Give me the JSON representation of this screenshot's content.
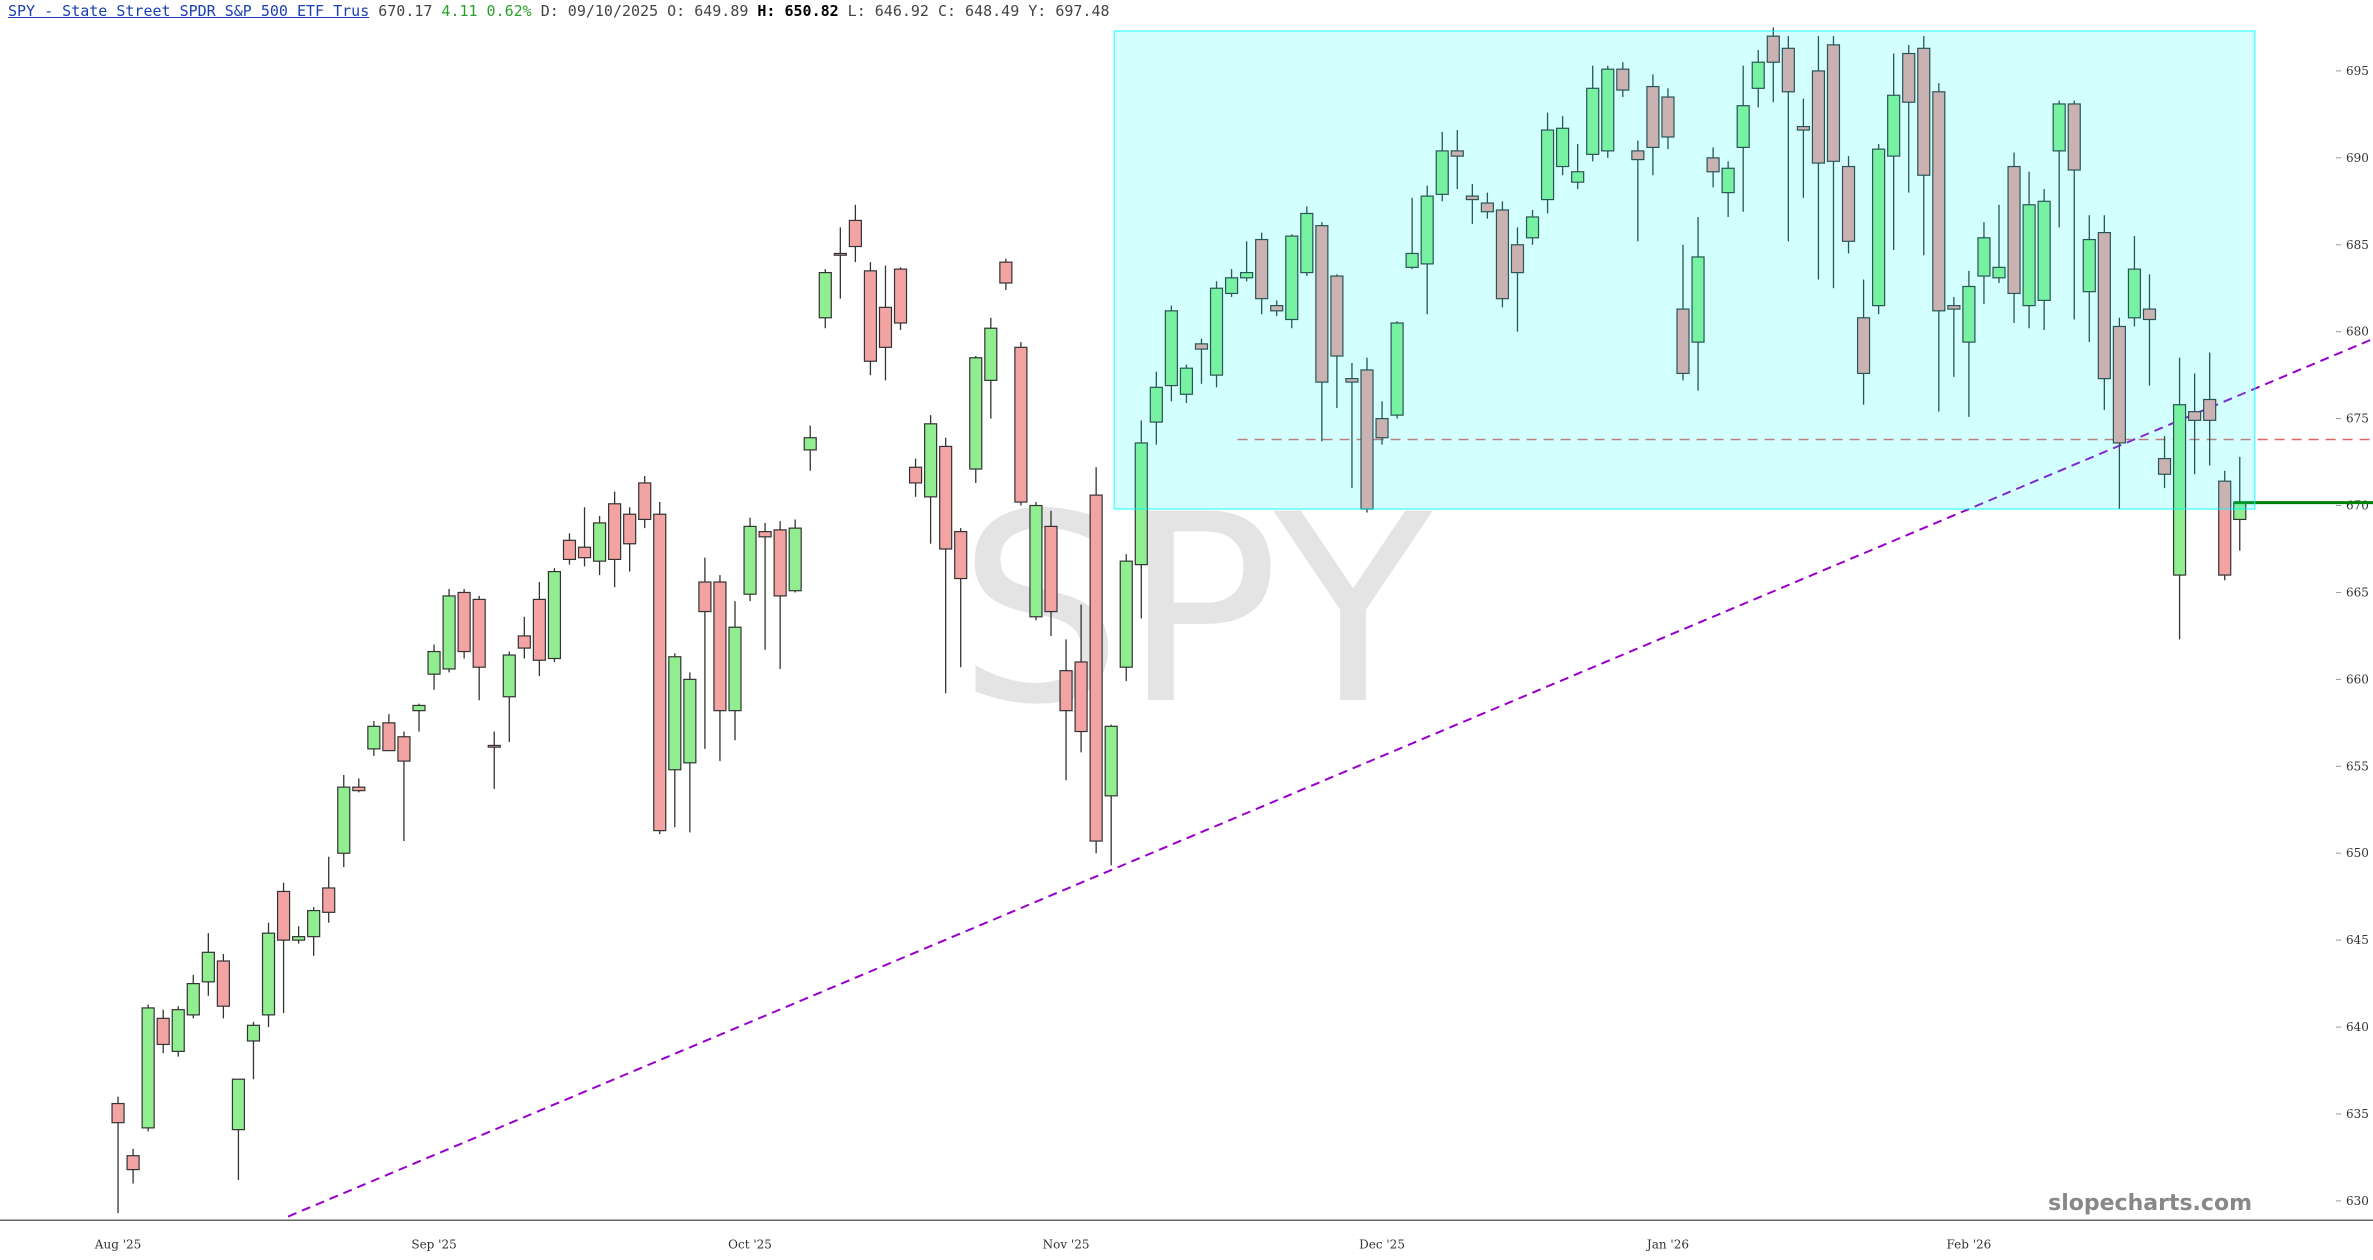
{
  "header": {
    "symbol": "SPY - State Street SPDR S&P 500 ETF Trus",
    "last": "670.17",
    "change": "4.11",
    "change_pct": "0.62%",
    "date": "D: 09/10/2025",
    "open": "O: 649.89",
    "high": "H: 650.82",
    "low": "L: 646.92",
    "close": "C: 648.49",
    "y": "Y: 697.48"
  },
  "chart_data": {
    "type": "candlestick",
    "watermark": "SPY",
    "brand": "slopecharts.com",
    "up_color": "#90ee90",
    "down_color": "#f4a3a3",
    "categories": [
      "Aug '25",
      null,
      null,
      null,
      null,
      null,
      null,
      null,
      null,
      null,
      null,
      null,
      null,
      null,
      null,
      null,
      null,
      null,
      null,
      null,
      null,
      "Sep '25",
      null,
      null,
      null,
      null,
      null,
      null,
      null,
      null,
      null,
      null,
      null,
      null,
      null,
      null,
      null,
      null,
      null,
      null,
      null,
      null,
      "Oct '25",
      null,
      null,
      null,
      null,
      null,
      null,
      null,
      null,
      null,
      null,
      null,
      null,
      null,
      null,
      null,
      null,
      null,
      null,
      null,
      null,
      "Nov '25",
      null,
      null,
      null,
      null,
      null,
      null,
      null,
      null,
      null,
      null,
      null,
      null,
      null,
      null,
      null,
      null,
      null,
      null,
      null,
      null,
      "Dec '25",
      null,
      null,
      null,
      null,
      null,
      null,
      null,
      null,
      null,
      null,
      null,
      null,
      null,
      null,
      null,
      null,
      null,
      null,
      "Jan '26",
      null,
      null,
      null,
      null,
      null,
      null,
      null,
      null,
      null,
      null,
      null,
      null,
      null,
      null,
      null,
      null,
      null,
      null,
      null,
      "Feb '26",
      null,
      null,
      null,
      null,
      null,
      null,
      null,
      null,
      null,
      null,
      null,
      null,
      null,
      null,
      null,
      null,
      null,
      null
    ],
    "open": [
      635.6,
      632.6,
      634.2,
      640.5,
      638.6,
      640.7,
      642.6,
      643.8,
      634.1,
      639.2,
      640.7,
      647.8,
      645,
      645.2,
      648,
      650,
      653.8,
      656,
      657.5,
      656.7,
      658.2,
      660.3,
      660.6,
      665,
      664.6,
      656.2,
      659,
      662.5,
      664.6,
      661.2,
      668,
      667.6,
      666.8,
      670.1,
      669.5,
      671.3,
      669.5,
      654.8,
      655.2,
      665.6,
      665.6,
      658.2,
      664.9,
      668.5,
      668.6,
      665.1,
      673.2,
      680.8,
      684.5,
      686.4,
      683.5,
      681.4,
      683.6,
      672.2,
      670.5,
      673.4,
      668.5,
      672.1,
      677.2,
      684,
      679.1,
      663.6,
      668.8,
      660.5,
      661,
      670.6,
      653.3,
      660.7,
      666.6,
      674.8,
      676.9,
      676.4,
      679.3,
      677.5,
      682.2,
      683.1,
      685.3,
      681.5,
      680.7,
      683.4,
      686.1,
      683.2,
      677.3,
      677.8,
      675,
      675.2,
      683.7,
      683.9,
      687.9,
      690.4,
      687.8,
      687.4,
      687,
      685,
      685.4,
      687.6,
      689.5,
      688.6,
      690.2,
      690.4,
      695.1,
      690.4,
      694.1,
      693.5,
      681.3,
      679.4,
      690,
      688,
      690.6,
      694,
      697,
      696.3,
      691.8,
      695,
      696.5,
      689.5,
      680.8,
      681.5,
      690.1,
      696,
      696.3,
      693.8,
      681.5,
      679.4,
      683.2,
      683.1,
      689.5,
      681.5,
      681.8,
      690.4,
      693.1,
      682.3,
      685.7,
      680.3,
      680.8,
      681.3,
      672.7,
      666,
      675.4,
      676.1,
      671.4,
      669.2
    ],
    "high": [
      636,
      633,
      641.3,
      641,
      641.2,
      643,
      645.4,
      644.2,
      637,
      640.3,
      646,
      648.3,
      645.8,
      646.9,
      649.8,
      654.5,
      654.3,
      657.6,
      658,
      657,
      658.6,
      662,
      665.2,
      665.2,
      664.8,
      657,
      661.6,
      663.6,
      665.6,
      666.4,
      668.4,
      669.9,
      669.4,
      670.8,
      669.9,
      671.7,
      670.2,
      661.5,
      660.4,
      667,
      666,
      664.5,
      669.3,
      669,
      669.1,
      669.2,
      674.6,
      683.6,
      686,
      687.3,
      684,
      683.8,
      683.7,
      672.7,
      675.2,
      673.9,
      668.7,
      678.6,
      680.8,
      684.2,
      679.4,
      670.2,
      669.7,
      662.3,
      664.3,
      672.2,
      657.4,
      667.2,
      674.9,
      677.7,
      681.5,
      678.1,
      679.6,
      682.9,
      683.6,
      685.2,
      685.7,
      681.8,
      685.6,
      687.2,
      686.3,
      683.3,
      678.2,
      678.5,
      676,
      680.6,
      687.7,
      688.4,
      691.5,
      691.6,
      688.5,
      688,
      687.5,
      686,
      687,
      692.6,
      692.4,
      690.8,
      695.3,
      695.3,
      695.5,
      691,
      694.8,
      694,
      685,
      686.6,
      690.6,
      689.8,
      695.3,
      696.2,
      697.5,
      697,
      693.4,
      697,
      697,
      690.1,
      683,
      690.8,
      696,
      696.5,
      697,
      694.3,
      682,
      683.5,
      686.3,
      687.3,
      690.3,
      689.2,
      688.2,
      693.3,
      693.3,
      686.7,
      686.7,
      680.8,
      685.5,
      683.3,
      674,
      678.5,
      677.6,
      678.8,
      672,
      672.8
    ],
    "low": [
      629.3,
      631,
      634,
      638.5,
      638.3,
      640.5,
      641.8,
      640.5,
      631.2,
      637,
      640,
      640.8,
      644.8,
      644.1,
      646,
      649.2,
      653.5,
      655.6,
      656,
      650.7,
      657,
      659.4,
      660.4,
      661.2,
      658.8,
      653.7,
      656.4,
      661.2,
      660.2,
      661,
      666.6,
      666.5,
      666,
      665.3,
      666.2,
      668.7,
      651.1,
      651.5,
      651.2,
      656,
      655.3,
      656.5,
      664.5,
      661.7,
      660.6,
      665,
      672,
      680.2,
      681.9,
      684,
      677.5,
      677.2,
      680.1,
      670.5,
      667.8,
      659.2,
      660.7,
      671.3,
      675,
      682.4,
      670,
      663.4,
      662.5,
      654.2,
      655.8,
      650,
      649.3,
      659.9,
      663.5,
      673.5,
      676,
      675.9,
      677,
      676.8,
      682,
      682.9,
      681,
      680.9,
      680.2,
      683.2,
      673.7,
      675.6,
      671,
      669.6,
      673.5,
      675,
      683.6,
      681,
      687.5,
      688.2,
      686.2,
      686.5,
      681.4,
      680,
      685,
      686.8,
      689,
      688.2,
      689.8,
      690,
      693.5,
      685.2,
      689,
      690.5,
      677.2,
      676.6,
      688.3,
      686.6,
      686.9,
      692.9,
      693.2,
      685.2,
      687.7,
      683,
      682.5,
      684.5,
      675.8,
      681,
      684.7,
      688,
      684.4,
      675.4,
      677.4,
      675.1,
      681.6,
      682.8,
      680.5,
      680.2,
      680.1,
      686,
      680.7,
      679.4,
      675.5,
      669.8,
      680.3,
      676.9,
      671,
      662.3,
      671.8,
      672.3,
      665.7,
      667.4
    ],
    "close": [
      634.5,
      631.8,
      641.1,
      639,
      641,
      642.5,
      644.3,
      641.2,
      637,
      640.1,
      645.4,
      645,
      645.2,
      646.7,
      646.6,
      653.8,
      653.6,
      657.3,
      655.9,
      655.3,
      658.5,
      661.6,
      664.8,
      661.6,
      660.7,
      656.1,
      661.4,
      661.8,
      661.1,
      666.2,
      666.9,
      667,
      669,
      666.9,
      667.8,
      669.2,
      651.3,
      661.3,
      660,
      663.9,
      658.2,
      663,
      668.8,
      668.2,
      664.8,
      668.7,
      673.9,
      683.4,
      684.4,
      684.9,
      678.3,
      679.1,
      680.5,
      671.3,
      674.7,
      667.5,
      665.8,
      678.5,
      680.2,
      682.8,
      670.2,
      670,
      663.9,
      658.2,
      657,
      650.7,
      657.3,
      666.8,
      673.6,
      676.8,
      681.2,
      677.9,
      679,
      682.5,
      683.1,
      683.4,
      681.9,
      681.2,
      685.5,
      686.8,
      677.1,
      678.6,
      677.1,
      669.8,
      673.9,
      680.5,
      684.5,
      687.8,
      690.4,
      690.1,
      687.6,
      686.9,
      681.9,
      683.4,
      686.6,
      691.6,
      691.7,
      689.2,
      694,
      695.1,
      693.9,
      689.9,
      690.6,
      691.2,
      677.6,
      684.3,
      689.2,
      689.4,
      693,
      695.5,
      695.5,
      693.8,
      691.6,
      689.7,
      689.8,
      685.2,
      677.6,
      690.5,
      693.6,
      693.2,
      689,
      681.2,
      681.3,
      682.6,
      685.4,
      683.7,
      682.2,
      687.3,
      687.5,
      693.1,
      689.3,
      685.3,
      677.3,
      673.6,
      683.6,
      680.7,
      671.8,
      675.8,
      674.9,
      674.9,
      666,
      670.17
    ],
    "ylim": [
      629,
      697.6
    ],
    "yticks": [
      630,
      635,
      640,
      645,
      650,
      655,
      660,
      665,
      670,
      675,
      680,
      685,
      690,
      695
    ],
    "zone": {
      "x_from": 66.2,
      "x_to": 142,
      "y_from": 669.8,
      "y_to": 697.3,
      "color": "#00ffff"
    },
    "level_line": {
      "value": 673.8,
      "x_from": 74.4,
      "color": "#e06666"
    },
    "trendline": {
      "x": [
        11.3,
        149.9
      ],
      "y": [
        629.1,
        679.6
      ],
      "color": "#9900cc"
    },
    "last_line_color": "#008000"
  }
}
